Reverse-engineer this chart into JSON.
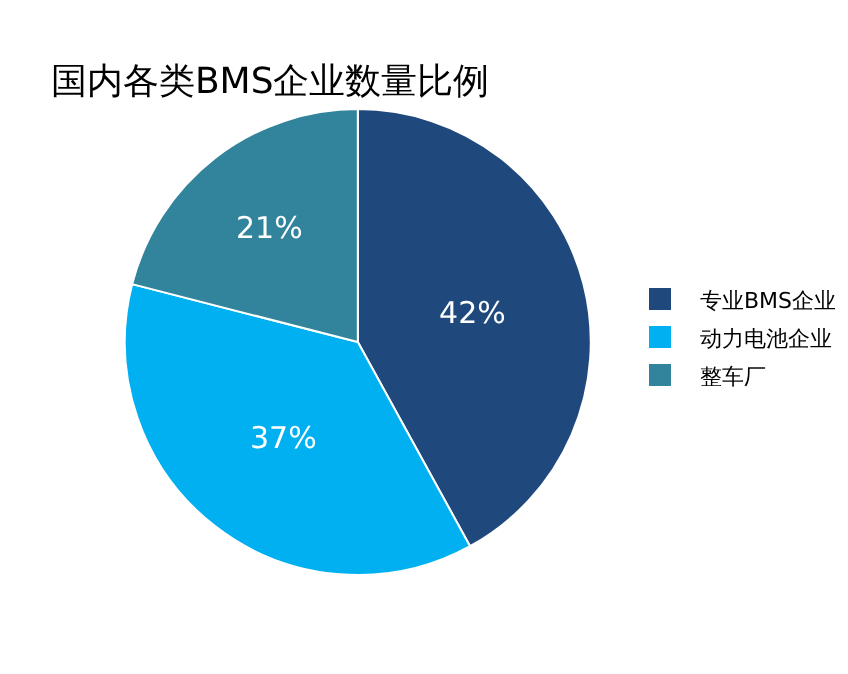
{
  "chart_data": {
    "type": "pie",
    "title": "国内各类BMS企业数量比例",
    "categories": [
      "专业BMS企业",
      "动力电池企业",
      "整车厂"
    ],
    "values": [
      42,
      37,
      21
    ],
    "colors": [
      "#1f497d",
      "#00b0f0",
      "#31849b"
    ],
    "value_labels": [
      "42%",
      "37%",
      "21%"
    ],
    "legend": "right"
  }
}
